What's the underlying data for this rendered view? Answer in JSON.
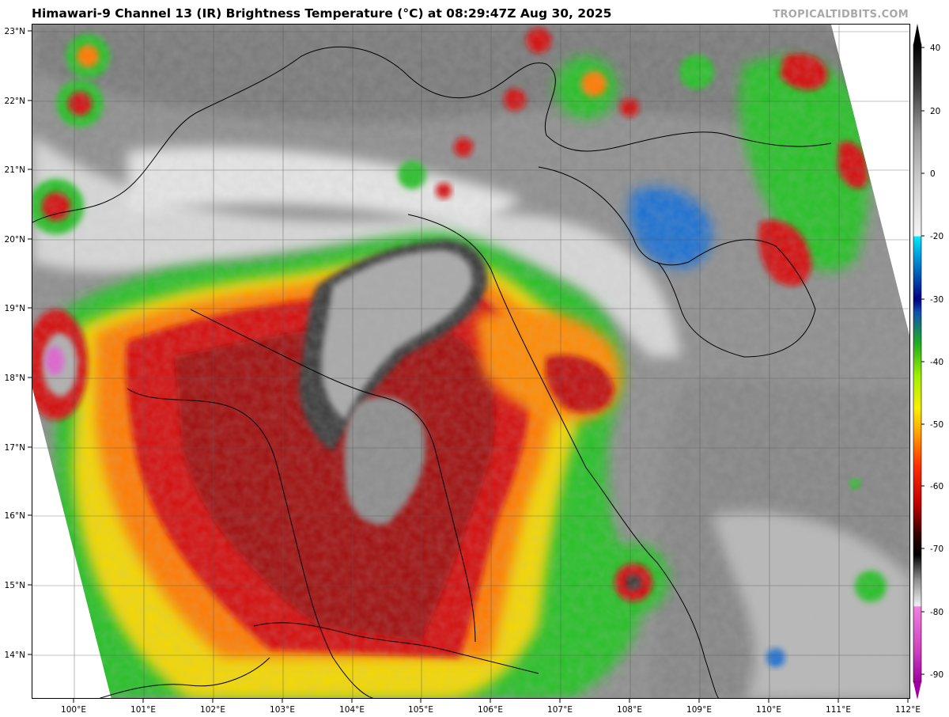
{
  "title": "Himawari-9 Channel 13 (IR) Brightness Temperature (°C) at 08:29:47Z Aug 30, 2025",
  "credit": "TROPICALTIDBITS.COM",
  "map": {
    "lat_ticks": [
      "14°N",
      "15°N",
      "16°N",
      "17°N",
      "18°N",
      "19°N",
      "20°N",
      "21°N",
      "22°N",
      "23°N"
    ],
    "lon_ticks": [
      "100°E",
      "101°E",
      "102°E",
      "103°E",
      "104°E",
      "105°E",
      "106°E",
      "107°E",
      "108°E",
      "109°E",
      "110°E",
      "111°E",
      "112°E"
    ],
    "lat_range": [
      13.4,
      23.1
    ],
    "lon_range": [
      99.4,
      112.0
    ]
  },
  "colorbar": {
    "ticks": [
      "40",
      "20",
      "0",
      "-20",
      "-30",
      "-40",
      "-50",
      "-60",
      "-70",
      "-80",
      "-90"
    ],
    "range": [
      -95,
      40
    ]
  },
  "colors": {
    "cold_pink": "#e060d0",
    "red": "#d01010",
    "orange": "#ff7a00",
    "yellow": "#f0e000",
    "green": "#20c020",
    "blue": "#0030c0",
    "cyan": "#00d8f0",
    "gray": "#8a8a8a"
  }
}
